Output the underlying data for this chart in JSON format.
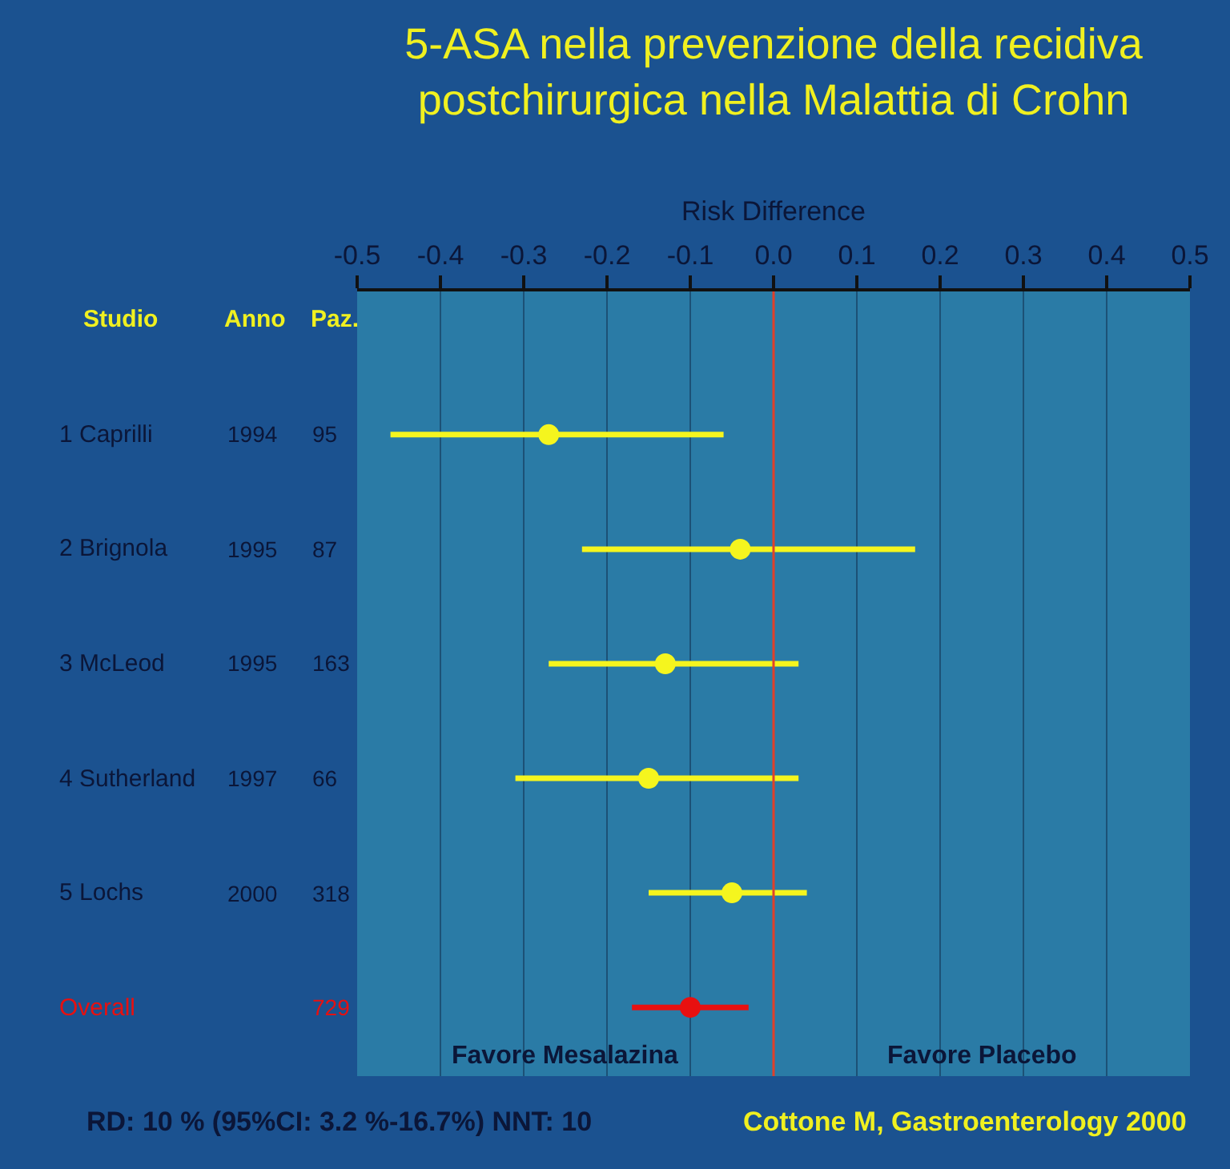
{
  "chart_data": {
    "type": "scatter",
    "orientation": "horizontal",
    "title": "5-ASA nella prevenzione della recidiva\npostchirurgica nella Malattia di Crohn",
    "xlabel": "Risk Difference",
    "categories": [
      "1 Caprilli",
      "2 Brignola",
      "3 McLeod",
      "4 Sutherland",
      "5 Lochs",
      "Overall"
    ],
    "series": [
      {
        "colors": [
          "#f5f51e",
          "#f5f51e",
          "#f5f51e",
          "#f5f51e",
          "#f5f51e",
          "#e81010"
        ],
        "values": [
          -0.27,
          -0.04,
          -0.13,
          -0.15,
          -0.05,
          -0.1
        ],
        "errors": [
          [
            -0.46,
            -0.06
          ],
          [
            -0.23,
            0.17
          ],
          [
            -0.27,
            0.03
          ],
          [
            -0.31,
            0.03
          ],
          [
            -0.15,
            0.04
          ],
          [
            -0.17,
            -0.03
          ]
        ]
      }
    ],
    "xlim": [
      -0.5,
      0.5
    ],
    "xticks": [
      {
        "value": -0.5,
        "label": "-0.5"
      },
      {
        "value": -0.4,
        "label": "-0.4"
      },
      {
        "value": -0.3,
        "label": "-0.3"
      },
      {
        "value": -0.2,
        "label": "-0.2"
      },
      {
        "value": -0.1,
        "label": "-0.1"
      },
      {
        "value": 0,
        "label": "0.0"
      },
      {
        "value": 0.1,
        "label": "0.1"
      },
      {
        "value": 0.2,
        "label": "0.2"
      },
      {
        "value": 0.3,
        "label": "0.3"
      },
      {
        "value": 0.4,
        "label": "0.4"
      },
      {
        "value": 0.5,
        "label": "0.5"
      }
    ],
    "ref_lines": [
      {
        "axis": "x",
        "value": 0,
        "color": "#e0402a"
      }
    ],
    "grid": "x",
    "marker": "circle",
    "annotations": [
      "Studio",
      "Anno",
      "Paz.",
      "1994",
      "95",
      "1995",
      "87",
      "1995",
      "163",
      "1997",
      "66",
      "2000",
      "318",
      "729",
      "Favore Mesalazina",
      "Favore Placebo",
      "RD: 10 % (95%CI: 3.2 %-16.7%) NNT: 10",
      "Cottone M, Gastroenterology 2000"
    ]
  }
}
